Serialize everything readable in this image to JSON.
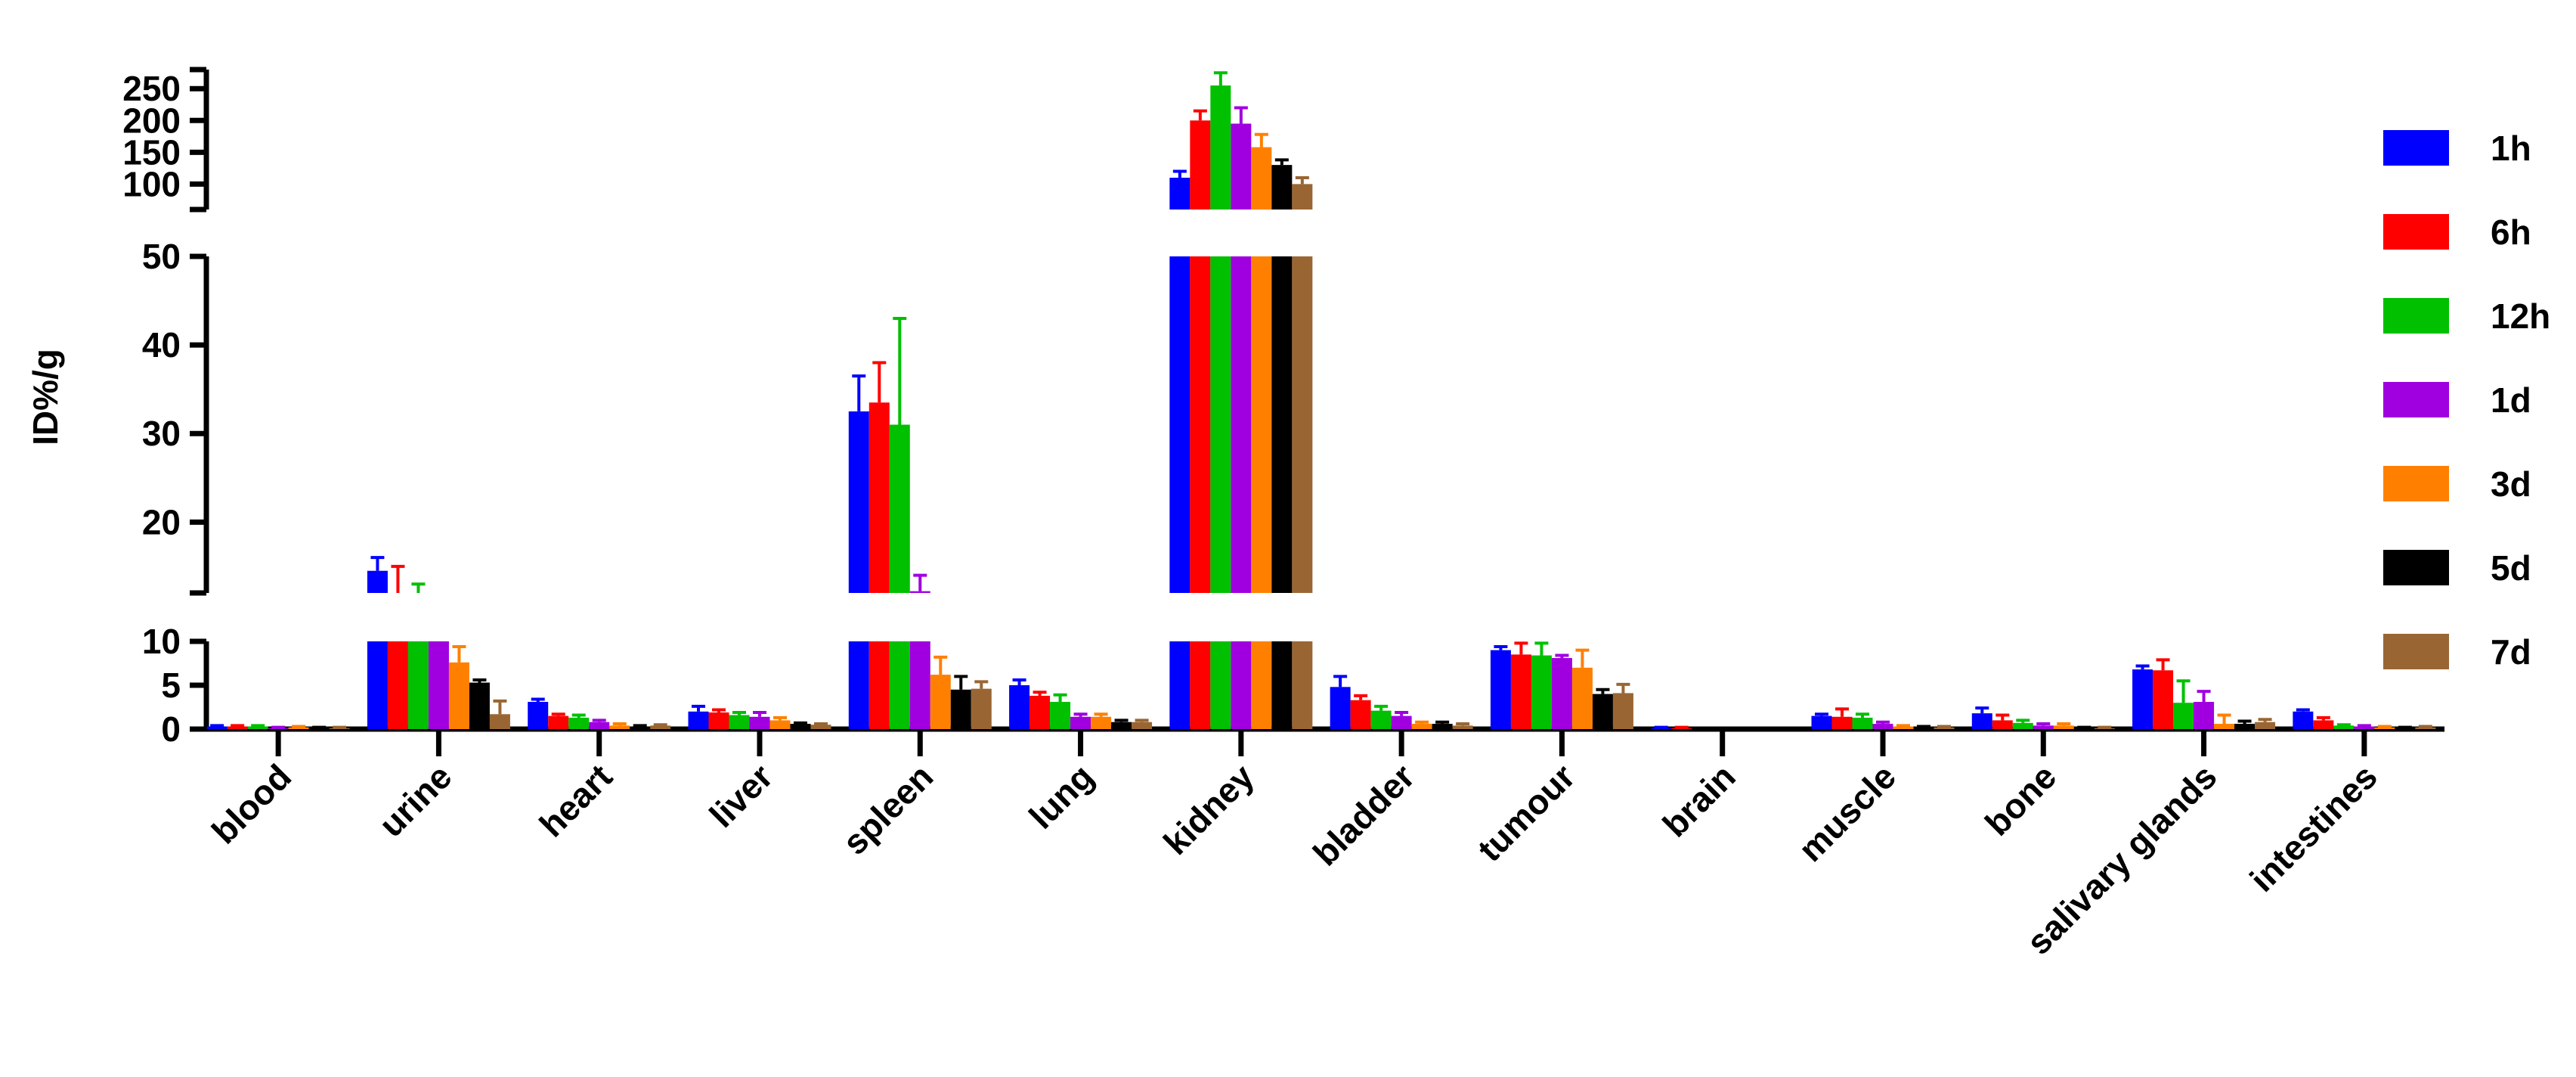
{
  "chart_data": {
    "type": "bar",
    "y_label": "ID%/g",
    "legend": "right",
    "categories": [
      "blood",
      "urine",
      "heart",
      "liver",
      "spleen",
      "lung",
      "kidney",
      "bladder",
      "tumour",
      "brain",
      "muscle",
      "bone",
      "salivary glands",
      "intestines"
    ],
    "segments": [
      {
        "ylim": [
          0,
          10
        ],
        "yticks": [
          0,
          5,
          10
        ]
      },
      {
        "ylim": [
          12,
          50
        ],
        "yticks": [
          20,
          30,
          40,
          50
        ]
      },
      {
        "ylim": [
          60,
          280
        ],
        "yticks": [
          100,
          150,
          200,
          250
        ]
      }
    ],
    "series": [
      {
        "name": "1h",
        "color": "#0000ff",
        "values": [
          0.3,
          14.5,
          3.1,
          2.0,
          32.5,
          5.0,
          110,
          4.8,
          9.0,
          0.1,
          1.5,
          1.8,
          6.8,
          2.0
        ],
        "errors": [
          0.1,
          1.5,
          0.3,
          0.6,
          4,
          0.6,
          10,
          1.2,
          0.4,
          0.1,
          0.2,
          0.6,
          0.4,
          0.2
        ]
      },
      {
        "name": "6h",
        "color": "#ff0000",
        "values": [
          0.3,
          12,
          1.5,
          1.9,
          33.5,
          3.8,
          200,
          3.3,
          8.5,
          0.1,
          1.4,
          1.0,
          6.7,
          1.0
        ],
        "errors": [
          0.1,
          3,
          0.2,
          0.3,
          4.5,
          0.4,
          15,
          0.5,
          1.3,
          0.1,
          0.9,
          0.6,
          1.2,
          0.3
        ]
      },
      {
        "name": "12h",
        "color": "#00c000",
        "values": [
          0.3,
          12,
          1.3,
          1.6,
          31,
          3.1,
          255,
          2.1,
          8.4,
          0,
          1.3,
          0.7,
          3.0,
          0.4
        ],
        "errors": [
          0.1,
          1,
          0.3,
          0.3,
          12,
          0.8,
          20,
          0.5,
          1.4,
          0,
          0.4,
          0.3,
          2.5,
          0.1
        ]
      },
      {
        "name": "1d",
        "color": "#a000e0",
        "values": [
          0.1,
          11,
          0.8,
          1.4,
          12.2,
          1.4,
          195,
          1.5,
          8.1,
          0,
          0.6,
          0.4,
          3.1,
          0.3
        ],
        "errors": [
          0.1,
          0.5,
          0.2,
          0.5,
          1.8,
          0.3,
          25,
          0.4,
          0.3,
          0,
          0.2,
          0.2,
          1.2,
          0.1
        ]
      },
      {
        "name": "3d",
        "color": "#ff8000",
        "values": [
          0.2,
          7.6,
          0.4,
          1.0,
          6.2,
          1.4,
          158,
          0.6,
          7.0,
          0,
          0.3,
          0.4,
          0.6,
          0.2
        ],
        "errors": [
          0.1,
          1.8,
          0.2,
          0.3,
          2,
          0.3,
          20,
          0.2,
          2,
          0,
          0.1,
          0.2,
          1,
          0.1
        ]
      },
      {
        "name": "5d",
        "color": "#000000",
        "values": [
          0.1,
          5.3,
          0.3,
          0.6,
          4.5,
          0.8,
          130,
          0.6,
          4.0,
          0,
          0.2,
          0.1,
          0.6,
          0.1
        ],
        "errors": [
          0.1,
          0.3,
          0.1,
          0.1,
          1.5,
          0.2,
          8,
          0.2,
          0.5,
          0,
          0.1,
          0.1,
          0.3,
          0.1
        ]
      },
      {
        "name": "7d",
        "color": "#996633",
        "values": [
          0.1,
          1.7,
          0.4,
          0.5,
          4.6,
          0.8,
          100,
          0.4,
          4.1,
          0,
          0.2,
          0.1,
          0.8,
          0.2
        ],
        "errors": [
          0.1,
          1.5,
          0.1,
          0.1,
          0.8,
          0.2,
          10,
          0.2,
          1,
          0,
          0.1,
          0.1,
          0.3,
          0.1
        ]
      }
    ]
  }
}
